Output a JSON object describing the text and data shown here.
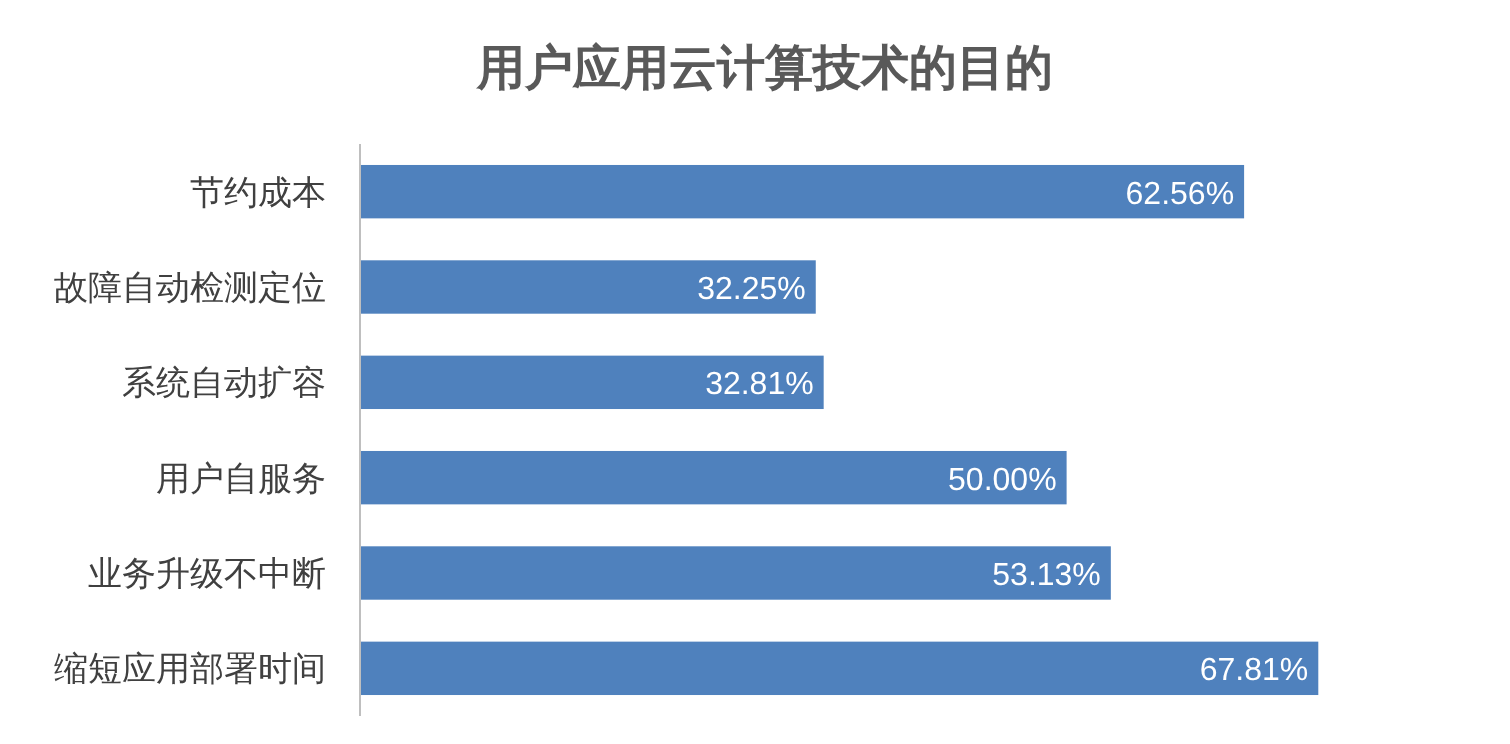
{
  "chart_data": {
    "type": "bar",
    "orientation": "horizontal",
    "title": "用户应用云计算技术的目的",
    "categories": [
      "节约成本",
      "故障自动检测定位",
      "系统自动扩容",
      "用户自服务",
      "业务升级不中断",
      "缩短应用部署时间"
    ],
    "values": [
      62.56,
      32.25,
      32.81,
      50.0,
      53.13,
      67.81
    ],
    "value_labels": [
      "62.56%",
      "32.25%",
      "32.81%",
      "50.00%",
      "53.13%",
      "67.81%"
    ],
    "color": "#4f81bd"
  }
}
